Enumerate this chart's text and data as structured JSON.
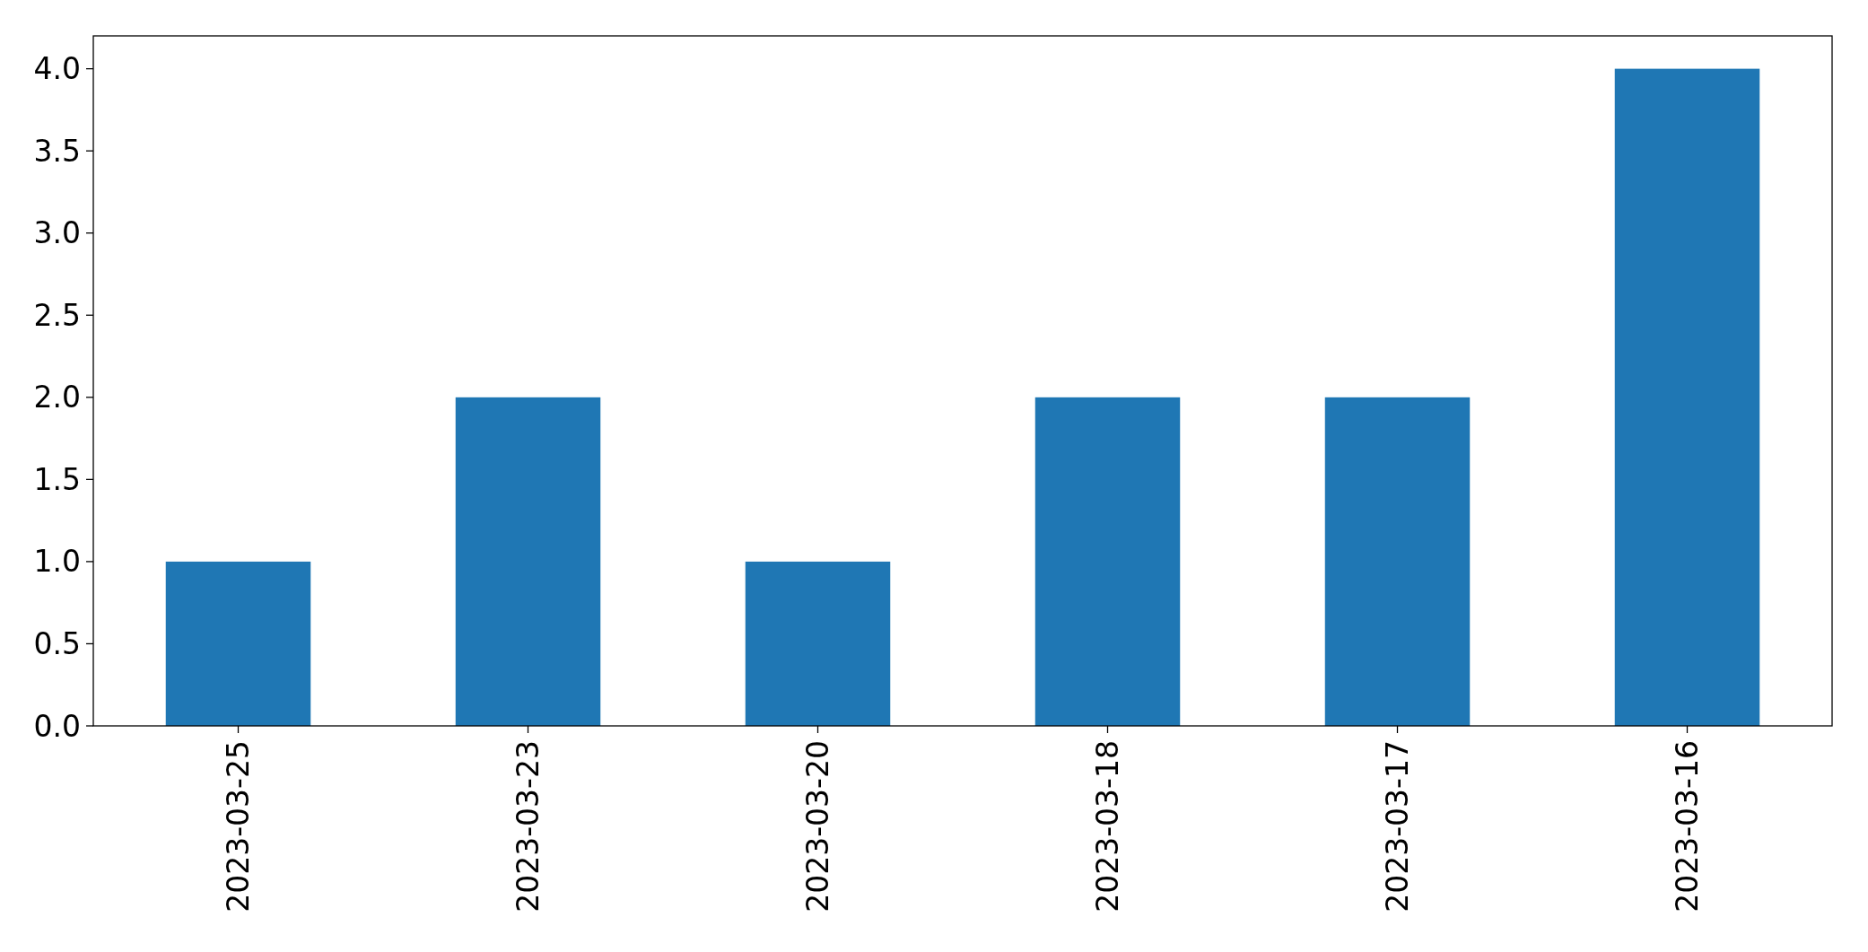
{
  "chart_data": {
    "type": "bar",
    "categories": [
      "2023-03-25",
      "2023-03-23",
      "2023-03-20",
      "2023-03-18",
      "2023-03-17",
      "2023-03-16"
    ],
    "values": [
      1,
      2,
      1,
      2,
      2,
      4
    ],
    "color": "#1f77b4",
    "ylim": [
      0,
      4.2
    ],
    "yticks": [
      {
        "value": 0,
        "label": "0.0"
      },
      {
        "value": 0.5,
        "label": "0.5"
      },
      {
        "value": 1,
        "label": "1.0"
      },
      {
        "value": 1.5,
        "label": "1.5"
      },
      {
        "value": 2,
        "label": "2.0"
      },
      {
        "value": 2.5,
        "label": "2.5"
      },
      {
        "value": 3,
        "label": "3.0"
      },
      {
        "value": 3.5,
        "label": "3.5"
      },
      {
        "value": 4,
        "label": "4.0"
      }
    ],
    "grid": false
  }
}
